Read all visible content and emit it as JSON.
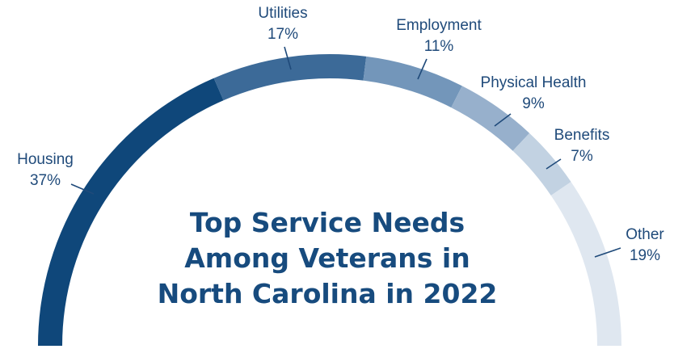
{
  "chart_data": {
    "type": "pie",
    "variant": "half-donut",
    "title": "Top Service Needs\nAmong Veterans in\nNorth Carolina in 2022",
    "slices": [
      {
        "label": "Housing",
        "value": 37,
        "value_label": "37%",
        "color": "#0f477a"
      },
      {
        "label": "Utilities",
        "value": 17,
        "value_label": "17%",
        "color": "#3c6a98"
      },
      {
        "label": "Employment",
        "value": 11,
        "value_label": "11%",
        "color": "#7396ba"
      },
      {
        "label": "Physical Health",
        "value": 9,
        "value_label": "9%",
        "color": "#97b0cc"
      },
      {
        "label": "Benefits",
        "value": 7,
        "value_label": "7%",
        "color": "#c2d2e2"
      },
      {
        "label": "Other",
        "value": 19,
        "value_label": "19%",
        "color": "#dfe7f0"
      }
    ],
    "legend": "none"
  }
}
